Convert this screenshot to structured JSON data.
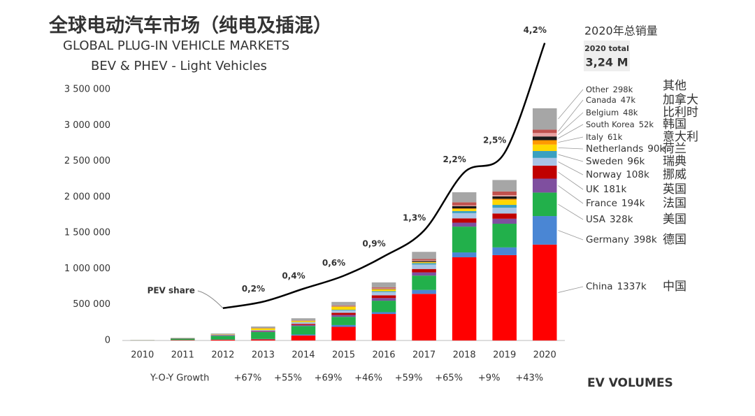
{
  "chart_data": {
    "type": "bar",
    "stacked": true,
    "title": "全球电动汽车市场（纯电及插混）",
    "subtitle": "GLOBAL PLUG-IN VEHICLE MARKETS",
    "subtitle2": "BEV & PHEV - Light Vehicles",
    "total_heading": "2020年总销量",
    "total_label": "2020 total",
    "total_value_label": "3,24 M",
    "source": "EV VOLUMES",
    "categories": [
      "2010",
      "2011",
      "2012",
      "2013",
      "2014",
      "2015",
      "2016",
      "2017",
      "2018",
      "2019",
      "2020"
    ],
    "ylim": [
      0,
      3500000
    ],
    "yticks": [
      0,
      {
        "value": 500000,
        "label": "500 000"
      },
      {
        "value": 1000000,
        "label": "1 000 000"
      },
      {
        "value": 1500000,
        "label": "1 500 000"
      },
      {
        "value": 2000000,
        "label": "2 000 000"
      },
      {
        "value": 2500000,
        "label": "2 500 000"
      },
      {
        "value": 3000000,
        "label": "3 000 000"
      },
      {
        "value": 3500000,
        "label": "3 500 000"
      }
    ],
    "grid": false,
    "series": [
      {
        "name": "China",
        "name_cn": "中国",
        "color": "#ff0000",
        "values": [
          2000,
          5000,
          10000,
          15000,
          70000,
          190000,
          370000,
          650000,
          1160000,
          1190000,
          1337000
        ],
        "value_labels": [
          null,
          null,
          null,
          null,
          null,
          null,
          null,
          null,
          null,
          null,
          "1337k"
        ]
      },
      {
        "name": "Germany",
        "name_cn": "德国",
        "color": "#4a86d4",
        "values": [
          0,
          2000,
          3000,
          6000,
          13000,
          25000,
          25000,
          55000,
          68000,
          108000,
          398000
        ],
        "value_labels": [
          null,
          null,
          null,
          null,
          null,
          null,
          null,
          null,
          null,
          null,
          "398k"
        ]
      },
      {
        "name": "USA",
        "name_cn": "美国",
        "color": "#22b04b",
        "values": [
          2000,
          18000,
          52000,
          98000,
          119000,
          115000,
          160000,
          200000,
          360000,
          330000,
          328000
        ],
        "value_labels": [
          null,
          null,
          null,
          null,
          null,
          null,
          null,
          null,
          null,
          null,
          "328k"
        ]
      },
      {
        "name": "France",
        "name_cn": "法国",
        "color": "#7f4f9f",
        "values": [
          0,
          3000,
          9000,
          14000,
          15000,
          27000,
          37000,
          45000,
          55000,
          70000,
          194000
        ],
        "value_labels": [
          null,
          null,
          null,
          null,
          null,
          null,
          null,
          null,
          null,
          null,
          "194k"
        ]
      },
      {
        "name": "UK",
        "name_cn": "英国",
        "color": "#c00000",
        "values": [
          0,
          1000,
          2000,
          4000,
          15000,
          28000,
          38000,
          47000,
          60000,
          73000,
          181000
        ],
        "value_labels": [
          null,
          null,
          null,
          null,
          null,
          null,
          null,
          null,
          null,
          null,
          "181k"
        ]
      },
      {
        "name": "Norway",
        "name_cn": "挪威",
        "color": "#a9c4e6",
        "values": [
          1000,
          2000,
          4000,
          8000,
          20000,
          34000,
          45000,
          62000,
          73000,
          80000,
          108000
        ],
        "value_labels": [
          null,
          null,
          null,
          null,
          null,
          null,
          null,
          null,
          null,
          null,
          "108k"
        ]
      },
      {
        "name": "Sweden",
        "name_cn": "瑞典",
        "color": "#3aa0c0",
        "values": [
          0,
          0,
          1000,
          1000,
          4000,
          9000,
          13000,
          20000,
          29000,
          40000,
          96000
        ],
        "value_labels": [
          null,
          null,
          null,
          null,
          null,
          null,
          null,
          null,
          null,
          null,
          "96k"
        ]
      },
      {
        "name": "Netherlands",
        "name_cn": "荷兰",
        "color": "#ffd700",
        "values": [
          0,
          1000,
          5000,
          23000,
          15000,
          43000,
          24000,
          11000,
          27000,
          67000,
          90000
        ],
        "value_labels": [
          null,
          null,
          null,
          null,
          null,
          null,
          null,
          null,
          null,
          null,
          "90k"
        ]
      },
      {
        "name": "Italy",
        "name_cn": "意大利",
        "color": "#ff9900",
        "values": [
          0,
          0,
          0,
          1000,
          1000,
          2000,
          3000,
          5000,
          10000,
          17000,
          61000
        ],
        "value_labels": [
          null,
          null,
          null,
          null,
          null,
          null,
          null,
          null,
          null,
          null,
          "61k"
        ]
      },
      {
        "name": "South Korea",
        "name_cn": "韩国",
        "color": "#1a1a1a",
        "values": [
          0,
          0,
          0,
          1000,
          1000,
          3000,
          5000,
          14000,
          32000,
          35000,
          52000
        ],
        "value_labels": [
          null,
          null,
          null,
          null,
          null,
          null,
          null,
          null,
          null,
          null,
          "52k"
        ]
      },
      {
        "name": "Belgium",
        "name_cn": "比利时",
        "color": "#e8a0a0",
        "values": [
          0,
          0,
          0,
          1000,
          2000,
          5000,
          8000,
          9000,
          10000,
          17000,
          48000
        ],
        "value_labels": [
          null,
          null,
          null,
          null,
          null,
          null,
          null,
          null,
          null,
          null,
          "48k"
        ]
      },
      {
        "name": "Canada",
        "name_cn": "加拿大",
        "color": "#c0504d",
        "values": [
          0,
          1000,
          2000,
          3000,
          5000,
          7000,
          12000,
          18000,
          43000,
          51000,
          47000
        ],
        "value_labels": [
          null,
          null,
          null,
          null,
          null,
          null,
          null,
          null,
          null,
          null,
          "47k"
        ]
      },
      {
        "name": "Other",
        "name_cn": "其他",
        "color": "#a6a6a6",
        "values": [
          1000,
          5000,
          10000,
          20000,
          30000,
          50000,
          70000,
          100000,
          140000,
          160000,
          298000
        ],
        "value_labels": [
          null,
          null,
          null,
          null,
          null,
          null,
          null,
          null,
          null,
          null,
          "298k"
        ]
      }
    ],
    "share": {
      "type": "line",
      "name": "PEV share",
      "axis": "y2",
      "color": "#000000",
      "values": [
        null,
        null,
        0.1,
        0.2,
        0.4,
        0.6,
        0.9,
        1.3,
        2.2,
        2.5,
        4.2
      ],
      "value_labels": [
        null,
        null,
        null,
        "0,2%",
        "0,4%",
        "0,6%",
        "0,9%",
        "1,3%",
        "2,2%",
        "2,5%",
        "4,2%"
      ]
    },
    "y2lim": [
      -0.4,
      4.4
    ],
    "growth": {
      "label": "Y-O-Y Growth",
      "values": [
        67,
        55,
        69,
        46,
        59,
        65,
        9,
        43
      ],
      "value_labels": [
        "+67%",
        "+55%",
        "+69%",
        "+46%",
        "+59%",
        "+65%",
        "+9%",
        "+43%"
      ]
    }
  }
}
